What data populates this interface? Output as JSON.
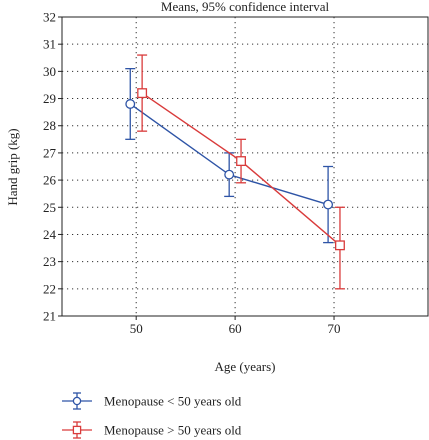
{
  "chart_data": {
    "type": "line",
    "title": "Means, 95% confidence interval",
    "xlabel": "Age (years)",
    "ylabel": "Hand grip (kg)",
    "ylim": [
      21,
      32
    ],
    "xlim": [
      42.5,
      79.5
    ],
    "y_ticks": [
      21,
      22,
      23,
      24,
      25,
      26,
      27,
      28,
      29,
      30,
      31,
      32
    ],
    "x_ticks": [
      50,
      60,
      70
    ],
    "grid": true,
    "legend_position": "bottom-left",
    "series": [
      {
        "name": "Menopause < 50 years old",
        "color": "#2e54a6",
        "marker": "circle",
        "x": [
          49.4,
          59.4,
          69.4
        ],
        "values": [
          28.8,
          26.2,
          25.1
        ],
        "ci_low": [
          27.5,
          25.4,
          23.7
        ],
        "ci_high": [
          30.1,
          27.0,
          26.5
        ]
      },
      {
        "name": "Menopause > 50 years old",
        "color": "#d93b3b",
        "marker": "square",
        "x": [
          50.6,
          60.6,
          70.6
        ],
        "values": [
          29.2,
          26.7,
          23.6
        ],
        "ci_low": [
          27.8,
          25.9,
          22.0
        ],
        "ci_high": [
          30.6,
          27.5,
          25.0
        ]
      }
    ]
  }
}
